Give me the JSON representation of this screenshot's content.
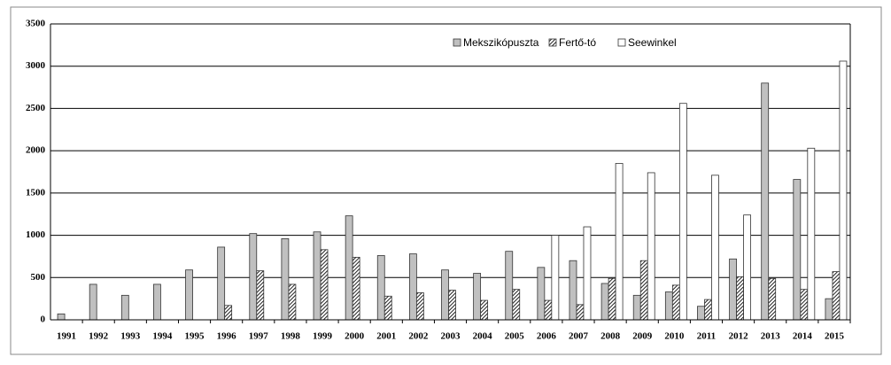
{
  "chart_data": {
    "type": "bar",
    "categories": [
      "1991",
      "1992",
      "1993",
      "1994",
      "1995",
      "1996",
      "1997",
      "1998",
      "1999",
      "2000",
      "2001",
      "2002",
      "2003",
      "2004",
      "2005",
      "2006",
      "2007",
      "2008",
      "2009",
      "2010",
      "2011",
      "2012",
      "2013",
      "2014",
      "2015"
    ],
    "series": [
      {
        "name": "Mekszikópuszta",
        "color": "#c0c0c0",
        "values": [
          70,
          420,
          290,
          420,
          590,
          860,
          1020,
          960,
          1040,
          1230,
          760,
          780,
          590,
          550,
          810,
          620,
          700,
          430,
          290,
          330,
          160,
          720,
          2800,
          1660,
          250
        ]
      },
      {
        "name": "Fertő-tó",
        "color": "hatch",
        "values": [
          null,
          null,
          null,
          null,
          null,
          170,
          580,
          420,
          830,
          740,
          280,
          320,
          350,
          230,
          360,
          230,
          180,
          490,
          700,
          410,
          240,
          510,
          490,
          360,
          570
        ]
      },
      {
        "name": "Seewinkel",
        "color": "#ffffff",
        "values": [
          null,
          null,
          null,
          null,
          null,
          null,
          null,
          null,
          null,
          null,
          null,
          null,
          null,
          null,
          null,
          1000,
          1100,
          1850,
          1740,
          2560,
          1710,
          1240,
          null,
          2030,
          3060
        ]
      }
    ],
    "ylim": [
      0,
      3500
    ],
    "yticks": [
      0,
      500,
      1000,
      1500,
      2000,
      2500,
      3000,
      3500
    ],
    "grid": true,
    "legend": "top"
  }
}
